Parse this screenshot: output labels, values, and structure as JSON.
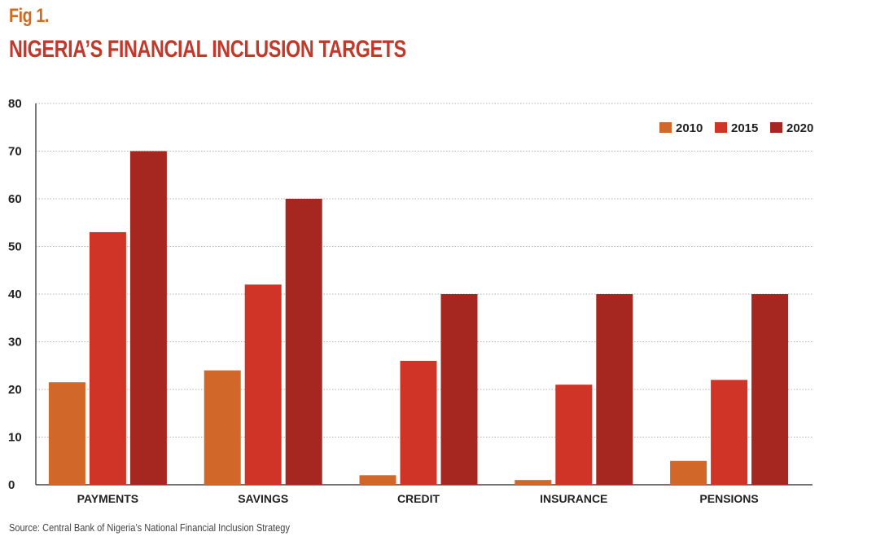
{
  "header": {
    "fig_label": "Fig 1.",
    "title": "NIGERIA’S FINANCIAL INCLUSION TARGETS"
  },
  "source": "Source: Central Bank of Nigeria’s National Financial Inclusion Strategy",
  "colors": {
    "s2010": "#d2672a",
    "s2015": "#cf3427",
    "s2020": "#a6271f",
    "grid": "#999999",
    "axis": "#222222",
    "text": "#222222"
  },
  "chart_data": {
    "type": "bar",
    "title": "NIGERIA’S FINANCIAL INCLUSION TARGETS",
    "xlabel": "",
    "ylabel": "",
    "ylim": [
      0,
      80
    ],
    "yticks": [
      0,
      10,
      20,
      30,
      40,
      50,
      60,
      70,
      80
    ],
    "grid": true,
    "legend_position": "top-right",
    "categories": [
      "PAYMENTS",
      "SAVINGS",
      "CREDIT",
      "INSURANCE",
      "PENSIONS"
    ],
    "series": [
      {
        "name": "2010",
        "values": [
          21.5,
          24,
          2,
          1,
          5
        ]
      },
      {
        "name": "2015",
        "values": [
          53,
          42,
          26,
          21,
          22
        ]
      },
      {
        "name": "2020",
        "values": [
          70,
          60,
          40,
          40,
          40
        ]
      }
    ]
  }
}
